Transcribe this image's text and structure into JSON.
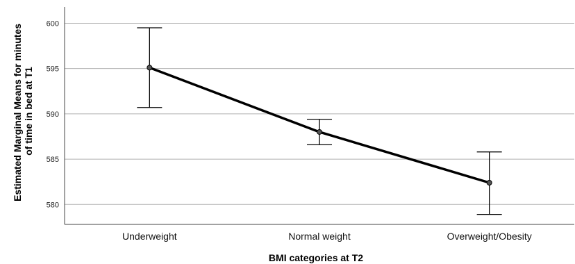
{
  "chart_data": {
    "type": "line",
    "title": "",
    "xlabel": "BMI categories at T2",
    "ylabel_lines": [
      "Estimated Marginal Means for minutes",
      "of time in bed at T1"
    ],
    "categories": [
      "Underweight",
      "Normal weight",
      "Overweight/Obesity"
    ],
    "series": [
      {
        "values": [
          595.1,
          588.0,
          582.4
        ],
        "error_low": [
          590.7,
          586.6,
          578.9
        ],
        "error_high": [
          599.5,
          589.4,
          585.8
        ]
      }
    ],
    "yticks": [
      580,
      585,
      590,
      595,
      600
    ],
    "ylim": [
      577.8,
      601.8
    ],
    "grid": true,
    "legend": "none",
    "colors": {
      "line": "#000000",
      "marker_fill": "#555555",
      "grid": "#b0b0b0"
    }
  }
}
